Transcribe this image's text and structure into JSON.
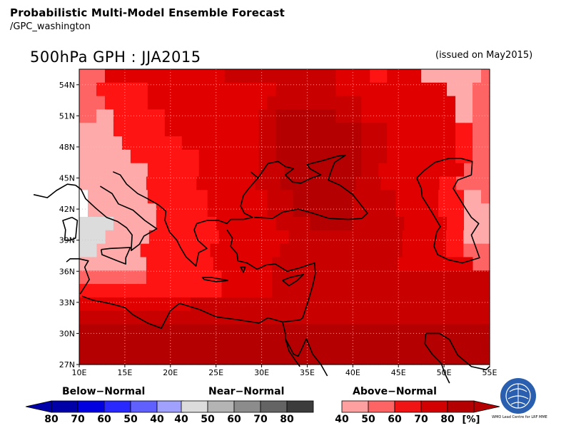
{
  "header": {
    "title": "Probabilistic Multi-Model Ensemble Forecast",
    "subtitle": "/GPC_washington"
  },
  "map": {
    "title": "500hPa GPH : JJA2015",
    "issued": "(issued on May2015)",
    "lat_labels": [
      "54N",
      "51N",
      "48N",
      "45N",
      "42N",
      "39N",
      "36N",
      "33N",
      "30N",
      "27N"
    ],
    "lon_labels": [
      "10E",
      "15E",
      "20E",
      "25E",
      "30E",
      "35E",
      "40E",
      "45E",
      "50E",
      "55E"
    ],
    "region": {
      "lon_range": [
        10,
        55
      ],
      "lat_range": [
        27,
        55.5
      ]
    }
  },
  "legend": {
    "below": {
      "label": "Below−Normal",
      "ticks": [
        "80",
        "70",
        "60",
        "50",
        "40"
      ],
      "colors": [
        "#0000a8",
        "#0000e0",
        "#2828ff",
        "#6060ff",
        "#a0a0ff"
      ]
    },
    "near": {
      "label": "Near−Normal",
      "ticks": [
        "40",
        "50",
        "60",
        "70",
        "80"
      ],
      "colors": [
        "#dcdcdc",
        "#b4b4b4",
        "#8c8c8c",
        "#646464",
        "#3c3c3c"
      ]
    },
    "above": {
      "label": "Above−Normal",
      "ticks": [
        "40",
        "50",
        "60",
        "70",
        "80"
      ],
      "colors": [
        "#ffa0a0",
        "#ff6464",
        "#f01414",
        "#d20000",
        "#b40000"
      ]
    },
    "unit": "[%]"
  },
  "logo": {
    "text": "WMO Lead Centre for LRF MME"
  },
  "colors": {
    "above_40": "#ffaaaa",
    "above_50": "#ff6464",
    "above_60": "#ff1414",
    "above_70": "#e00000",
    "above_80": "#c80000",
    "above_90": "#b40000",
    "near_40": "#dcdcdc",
    "land_outline": "#000000"
  }
}
